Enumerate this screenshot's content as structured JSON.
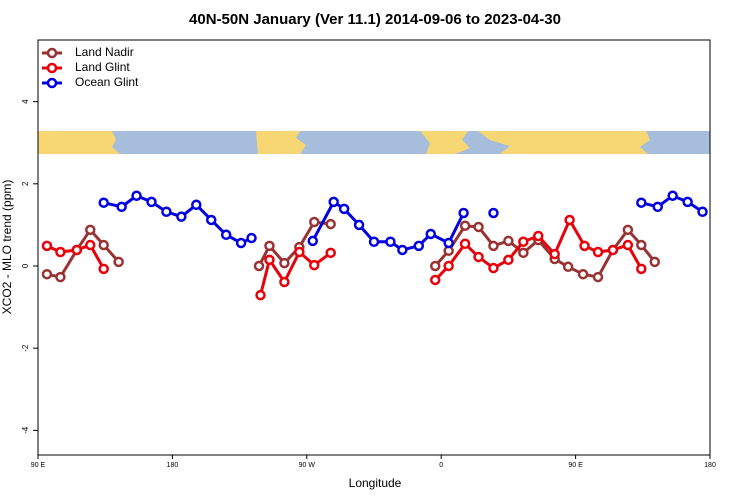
{
  "chart_data": {
    "type": "line",
    "title": "40N-50N January (Ver 11.1)   2014-09-06 to 2023-04-30",
    "x_label": "Longitude",
    "y_label": "XCO2 - MLO trend (ppm)",
    "xlim": [
      90,
      540
    ],
    "ylim": [
      -4.6,
      5.5
    ],
    "xticks": [
      {
        "value": 90,
        "label": "90 E"
      },
      180,
      {
        "value": 270,
        "label": "90 W"
      },
      {
        "value": 360,
        "label": "0"
      },
      {
        "value": 450,
        "label": "90 E"
      },
      {
        "value": 540,
        "label": "180"
      }
    ],
    "yticks": [
      -4,
      -2,
      0,
      2,
      4
    ],
    "legend": "top-left",
    "series": [
      {
        "name": "Land Nadir",
        "color": "#993333",
        "x": [
          96,
          105,
          116,
          125,
          134,
          144,
          null,
          238,
          245,
          255,
          265,
          275,
          286,
          null,
          356,
          365,
          376,
          385,
          395,
          405,
          415,
          425,
          436,
          445,
          455,
          465,
          475,
          485,
          494,
          503
        ],
        "values": [
          -0.2,
          -0.27,
          0.39,
          0.88,
          0.51,
          0.1,
          null,
          0,
          0.49,
          0.07,
          0.46,
          1.07,
          1.02,
          null,
          0,
          0.37,
          0.98,
          0.95,
          0.49,
          0.61,
          0.32,
          0.63,
          0.17,
          -0.02,
          -0.2,
          -0.27,
          0.39,
          0.88,
          0.51,
          0.1
        ]
      },
      {
        "name": "Land Glint",
        "color": "#e8000b",
        "x": [
          96,
          105,
          116,
          125,
          134,
          null,
          239,
          245,
          255,
          265,
          275,
          286,
          null,
          356,
          365,
          376,
          385,
          395,
          405,
          415,
          425,
          436,
          446,
          456,
          465,
          475,
          485,
          494
        ],
        "values": [
          0.49,
          0.34,
          0.39,
          0.51,
          -0.07,
          null,
          -0.71,
          0.15,
          -0.39,
          0.34,
          0.02,
          0.32,
          null,
          -0.34,
          0,
          0.54,
          0.22,
          -0.05,
          0.15,
          0.59,
          0.73,
          0.29,
          1.12,
          0.49,
          0.34,
          0.39,
          0.51,
          -0.07
        ]
      },
      {
        "name": "Ocean Glint",
        "color": "#0000e0",
        "x": [
          134,
          146,
          156,
          166,
          176,
          186,
          196,
          206,
          216,
          226,
          233,
          null,
          274,
          288,
          295,
          305,
          315,
          326,
          334,
          345,
          353,
          365,
          375,
          null,
          395,
          null,
          494,
          505,
          515,
          525,
          535
        ],
        "values": [
          1.54,
          1.44,
          1.71,
          1.56,
          1.32,
          1.2,
          1.49,
          1.12,
          0.76,
          0.56,
          0.68,
          null,
          0.61,
          1.56,
          1.39,
          1.0,
          0.59,
          0.59,
          0.39,
          0.49,
          0.78,
          0.56,
          1.29,
          null,
          1.29,
          null,
          1.54,
          1.44,
          1.71,
          1.56,
          1.32
        ]
      }
    ]
  }
}
